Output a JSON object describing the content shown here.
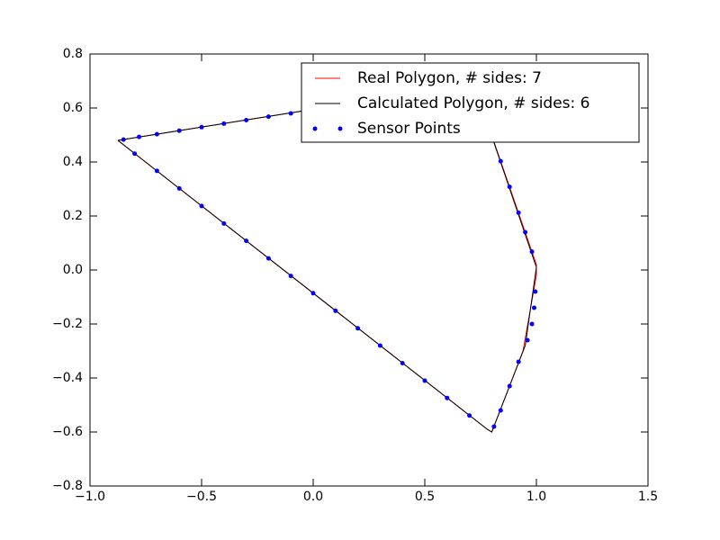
{
  "chart_data": {
    "type": "line",
    "xlim": [
      -1.0,
      1.5
    ],
    "ylim": [
      -0.8,
      0.8
    ],
    "xticks": [
      {
        "value": -1.0,
        "label": "−1.0"
      },
      {
        "value": -0.5,
        "label": "−0.5"
      },
      {
        "value": 0.0,
        "label": "0.0"
      },
      {
        "value": 0.5,
        "label": "0.5"
      },
      {
        "value": 1.0,
        "label": "1.0"
      },
      {
        "value": 1.5,
        "label": "1.5"
      }
    ],
    "yticks": [
      {
        "value": -0.8,
        "label": "−0.8"
      },
      {
        "value": -0.6,
        "label": "−0.6"
      },
      {
        "value": -0.4,
        "label": "−0.4"
      },
      {
        "value": -0.2,
        "label": "−0.2"
      },
      {
        "value": 0.0,
        "label": "0.0"
      },
      {
        "value": 0.2,
        "label": "0.2"
      },
      {
        "value": 0.4,
        "label": "0.4"
      },
      {
        "value": 0.6,
        "label": "0.6"
      },
      {
        "value": 0.8,
        "label": "0.8"
      }
    ],
    "legend": "upper right",
    "series": [
      {
        "name": "Real Polygon, # sides: 7",
        "color": "#ff0000",
        "style": "line",
        "x": [
          -0.875,
          0.72,
          1.0,
          1.0,
          0.94,
          0.8,
          0.78,
          -0.875
        ],
        "y": [
          0.48,
          0.69,
          0.02,
          -0.02,
          -0.3,
          -0.6,
          -0.59,
          0.48
        ]
      },
      {
        "name": "Calculated Polygon, # sides: 6",
        "color": "#000000",
        "style": "line",
        "x": [
          -0.875,
          0.72,
          1.0,
          0.95,
          0.8,
          0.78,
          -0.875
        ],
        "y": [
          0.48,
          0.69,
          0.01,
          -0.28,
          -0.6,
          -0.59,
          0.48
        ]
      },
      {
        "name": "Sensor Points",
        "color": "#0000ff",
        "style": "points",
        "x": [
          -0.85,
          -0.78,
          -0.7,
          -0.6,
          -0.5,
          -0.4,
          -0.3,
          -0.2,
          -0.1,
          0.0,
          0.2,
          0.4,
          0.6,
          0.8,
          0.84,
          0.88,
          0.92,
          0.95,
          0.98,
          0.995,
          0.99,
          0.98,
          0.96,
          0.92,
          0.88,
          0.84,
          0.81,
          0.7,
          0.6,
          0.5,
          0.4,
          0.3,
          0.2,
          0.1,
          0.0,
          -0.1,
          -0.2,
          -0.3,
          -0.4,
          -0.5,
          -0.6,
          -0.7,
          -0.8
        ],
        "y": [
          0.483,
          0.493,
          0.503,
          0.516,
          0.529,
          0.542,
          0.555,
          0.568,
          0.58,
          0.595,
          0.622,
          0.648,
          0.674,
          0.499,
          0.403,
          0.308,
          0.212,
          0.14,
          0.068,
          -0.08,
          -0.14,
          -0.2,
          -0.26,
          -0.34,
          -0.43,
          -0.52,
          -0.58,
          -0.539,
          -0.474,
          -0.41,
          -0.345,
          -0.28,
          -0.216,
          -0.151,
          -0.086,
          -0.022,
          0.043,
          0.108,
          0.172,
          0.237,
          0.302,
          0.367,
          0.431
        ]
      }
    ]
  }
}
